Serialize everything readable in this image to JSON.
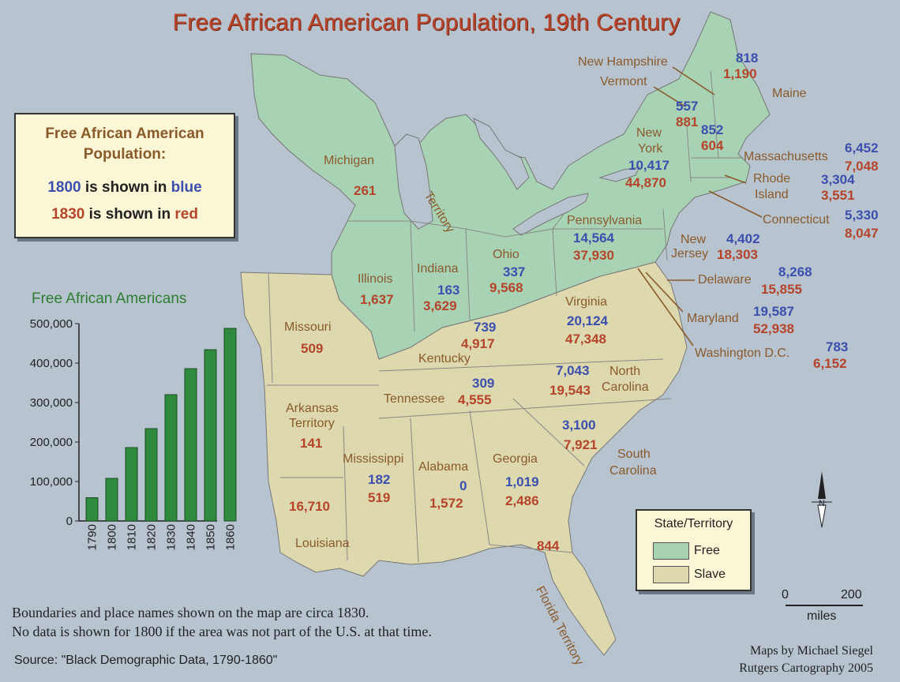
{
  "title": "Free African American Population, 19th Century",
  "legend": {
    "heading_line1": "Free African American",
    "heading_line2": "Population:",
    "line_1800_year": "1800",
    "line_1800_mid": " is shown in ",
    "line_1800_color_word": "blue",
    "line_1830_year": "1830",
    "line_1830_mid": " is shown in ",
    "line_1830_color_word": "red"
  },
  "chart_title": "Free African Americans",
  "chart_data": {
    "type": "bar",
    "title": "Free African Americans",
    "categories": [
      "1790",
      "1800",
      "1810",
      "1820",
      "1830",
      "1840",
      "1850",
      "1860"
    ],
    "values": [
      59000,
      108000,
      186000,
      234000,
      320000,
      386000,
      434000,
      488000
    ],
    "ylim": [
      0,
      500000
    ],
    "yticks": [
      "0",
      "100,000",
      "200,000",
      "300,000",
      "400,000",
      "500,000"
    ],
    "color": "#2e8b3e"
  },
  "map_legend": {
    "title": "State/Territory",
    "free_label": "Free",
    "slave_label": "Slave",
    "free_color": "#a8d2b4",
    "slave_color": "#ddd8ae"
  },
  "north_arrow": "N",
  "scale": {
    "start": "0",
    "end": "200",
    "unit": "miles"
  },
  "notes": {
    "line1": "Boundaries and place names shown on the map are circa 1830.",
    "line2": "No data is shown for 1800 if the area was not part of the U.S. at that time."
  },
  "source": "Source: \"Black Demographic Data, 1790-1860\"",
  "credit": {
    "line1": "Maps by Michael Siegel",
    "line2": "Rutgers Cartography 2005"
  },
  "regions": {
    "maine": {
      "name": "Maine",
      "v1800": "818",
      "v1830": "1,190"
    },
    "new_hampshire": {
      "name": "New Hampshire",
      "v1800": "",
      "v1830": ""
    },
    "vermont": {
      "name": "Vermont",
      "v1800": "557",
      "v1830": "881"
    },
    "nh_values": {
      "v1800": "852",
      "v1830": "604"
    },
    "massachusetts": {
      "name": "Massachusetts",
      "v1800": "6,452",
      "v1830": "7,048"
    },
    "rhode_island": {
      "name1": "Rhode",
      "name2": "Island",
      "v1800": "3,304",
      "v1830": "3,551"
    },
    "connecticut": {
      "name": "Connecticut",
      "v1800": "5,330",
      "v1830": "8,047"
    },
    "new_york": {
      "name1": "New",
      "name2": "York",
      "v1800": "10,417",
      "v1830": "44,870"
    },
    "new_jersey": {
      "name1": "New",
      "name2": "Jersey",
      "v1800": "4,402",
      "v1830": "18,303"
    },
    "pennsylvania": {
      "name": "Pennsylvania",
      "v1800": "14,564",
      "v1830": "37,930"
    },
    "delaware": {
      "name": "Delaware",
      "v1800": "8,268",
      "v1830": "15,855"
    },
    "maryland": {
      "name": "Maryland",
      "v1800": "19,587",
      "v1830": "52,938"
    },
    "washington_dc": {
      "name": "Washington D.C.",
      "v1800": "783",
      "v1830": "6,152"
    },
    "michigan": {
      "name": "Michigan",
      "v1830": "261",
      "territory": "Territory"
    },
    "ohio": {
      "name": "Ohio",
      "v1800": "337",
      "v1830": "9,568"
    },
    "indiana": {
      "name": "Indiana",
      "v1800": "163",
      "v1830": "3,629"
    },
    "illinois": {
      "name": "Illinois",
      "v1830": "1,637"
    },
    "missouri": {
      "name": "Missouri",
      "v1830": "509"
    },
    "kentucky": {
      "name": "Kentucky",
      "v1800": "739",
      "v1830": "4,917"
    },
    "virginia": {
      "name": "Virginia",
      "v1800": "20,124",
      "v1830": "47,348"
    },
    "tennessee": {
      "name": "Tennessee",
      "v1800": "309",
      "v1830": "4,555"
    },
    "north_carolina": {
      "name1": "North",
      "name2": "Carolina",
      "v1800": "7,043",
      "v1830": "19,543"
    },
    "south_carolina": {
      "name1": "South",
      "name2": "Carolina",
      "v1800": "3,100",
      "v1830": "7,921"
    },
    "arkansas": {
      "name1": "Arkansas",
      "name2": "Territory",
      "v1830": "141"
    },
    "mississippi": {
      "name": "Mississippi",
      "v1800": "182",
      "v1830": "519"
    },
    "alabama": {
      "name": "Alabama",
      "v1800": "0",
      "v1830": "1,572"
    },
    "georgia": {
      "name": "Georgia",
      "v1800": "1,019",
      "v1830": "2,486"
    },
    "louisiana": {
      "name": "Louisiana",
      "v1830": "16,710"
    },
    "florida": {
      "name": "Florida Territory",
      "v1830": "844"
    }
  }
}
